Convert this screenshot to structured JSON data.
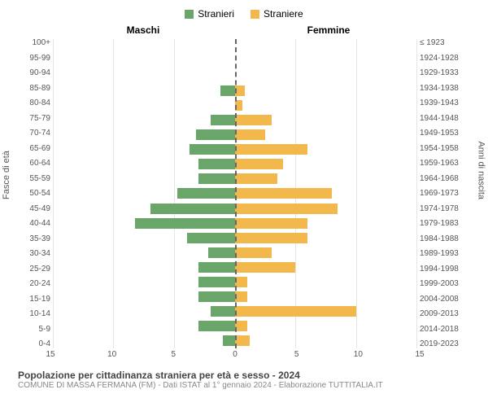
{
  "legend": {
    "male": {
      "label": "Stranieri",
      "color": "#6aa66a"
    },
    "female": {
      "label": "Straniere",
      "color": "#f2b84b"
    }
  },
  "headers": {
    "left": "Maschi",
    "right": "Femmine"
  },
  "axis_left_title": "Fasce di età",
  "axis_right_title": "Anni di nascita",
  "age_groups": [
    "100+",
    "95-99",
    "90-94",
    "85-89",
    "80-84",
    "75-79",
    "70-74",
    "65-69",
    "60-64",
    "55-59",
    "50-54",
    "45-49",
    "40-44",
    "35-39",
    "30-34",
    "25-29",
    "20-24",
    "15-19",
    "10-14",
    "5-9",
    "0-4"
  ],
  "birth_years": [
    "≤ 1923",
    "1924-1928",
    "1929-1933",
    "1934-1938",
    "1939-1943",
    "1944-1948",
    "1949-1953",
    "1954-1958",
    "1959-1963",
    "1964-1968",
    "1969-1973",
    "1974-1978",
    "1979-1983",
    "1984-1988",
    "1989-1993",
    "1994-1998",
    "1999-2003",
    "2004-2008",
    "2009-2013",
    "2014-2018",
    "2019-2023"
  ],
  "male_values": [
    0,
    0,
    0,
    1.2,
    0,
    2.0,
    3.2,
    3.8,
    3.0,
    3.0,
    4.8,
    7.0,
    8.3,
    4.0,
    2.2,
    3.0,
    3.0,
    3.0,
    2.0,
    3.0,
    1.0
  ],
  "female_values": [
    0,
    0,
    0,
    0.8,
    0.6,
    3.0,
    2.5,
    6.0,
    4.0,
    3.5,
    8.0,
    8.5,
    6.0,
    6.0,
    3.0,
    5.0,
    1.0,
    1.0,
    10.0,
    1.0,
    1.2
  ],
  "xmax": 15,
  "xticks": [
    15,
    10,
    5,
    0,
    5,
    10,
    15
  ],
  "caption": "Popolazione per cittadinanza straniera per età e sesso - 2024",
  "subcaption": "COMUNE DI MASSA FERMANA (FM) - Dati ISTAT al 1° gennaio 2024 - Elaborazione TUTTITALIA.IT",
  "grid_color": "#e5e5e5",
  "background_color": "#ffffff"
}
